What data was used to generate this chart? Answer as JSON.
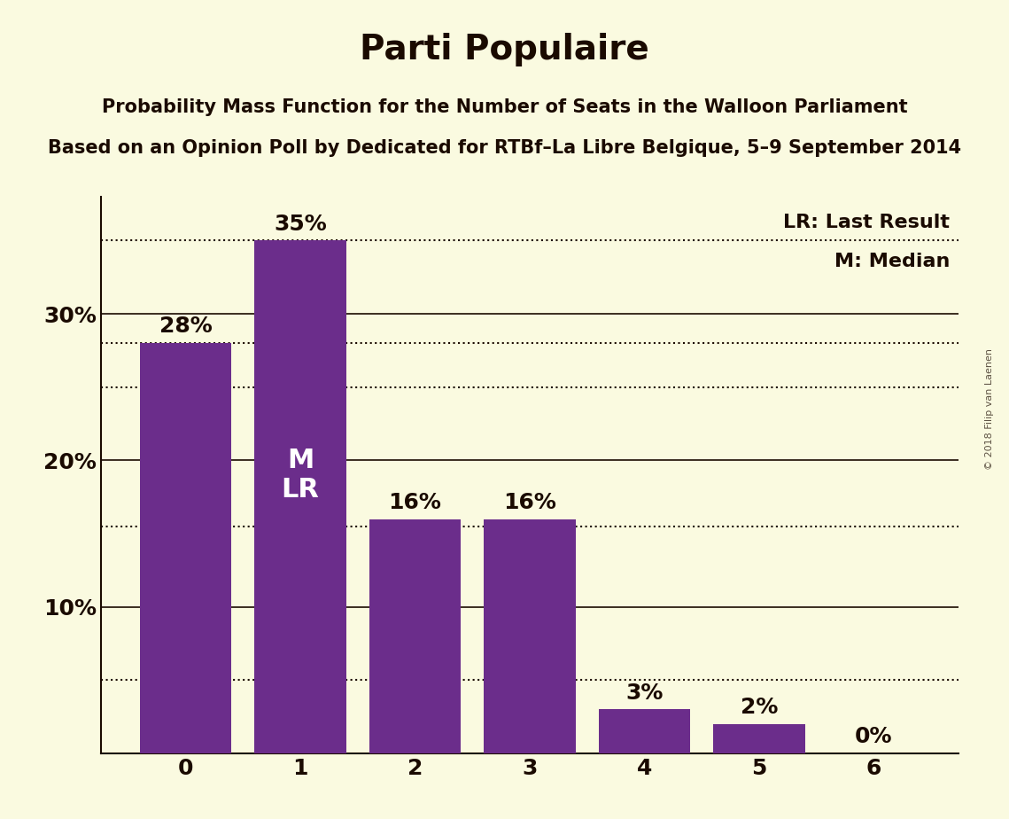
{
  "title": "Parti Populaire",
  "subtitle1": "Probability Mass Function for the Number of Seats in the Walloon Parliament",
  "subtitle2": "Based on an Opinion Poll by Dedicated for RTBf–La Libre Belgique, 5–9 September 2014",
  "categories": [
    0,
    1,
    2,
    3,
    4,
    5,
    6
  ],
  "values": [
    0.28,
    0.35,
    0.16,
    0.16,
    0.03,
    0.02,
    0.0
  ],
  "bar_labels": [
    "28%",
    "35%",
    "16%",
    "16%",
    "3%",
    "2%",
    "0%"
  ],
  "bar_color": "#6B2D8B",
  "background_color": "#FAFAE0",
  "text_color": "#1A0A00",
  "ylim": [
    0,
    0.38
  ],
  "yticks": [
    0.1,
    0.2,
    0.3
  ],
  "ytick_labels": [
    "10%",
    "20%",
    "30%"
  ],
  "dotted_lines": [
    0.35,
    0.28,
    0.25,
    0.155,
    0.05
  ],
  "median_line_y": 0.35,
  "lr_label": "LR: Last Result",
  "m_label": "M: Median",
  "annotation_bar": 1,
  "m_text": "M",
  "lr_text": "LR",
  "watermark": "© 2018 Filip van Laenen",
  "title_fontsize": 28,
  "subtitle_fontsize": 15,
  "label_fontsize": 18,
  "ytick_fontsize": 18,
  "xtick_fontsize": 18,
  "bar_label_fontsize": 18,
  "legend_fontsize": 16,
  "annotation_fontsize": 22
}
